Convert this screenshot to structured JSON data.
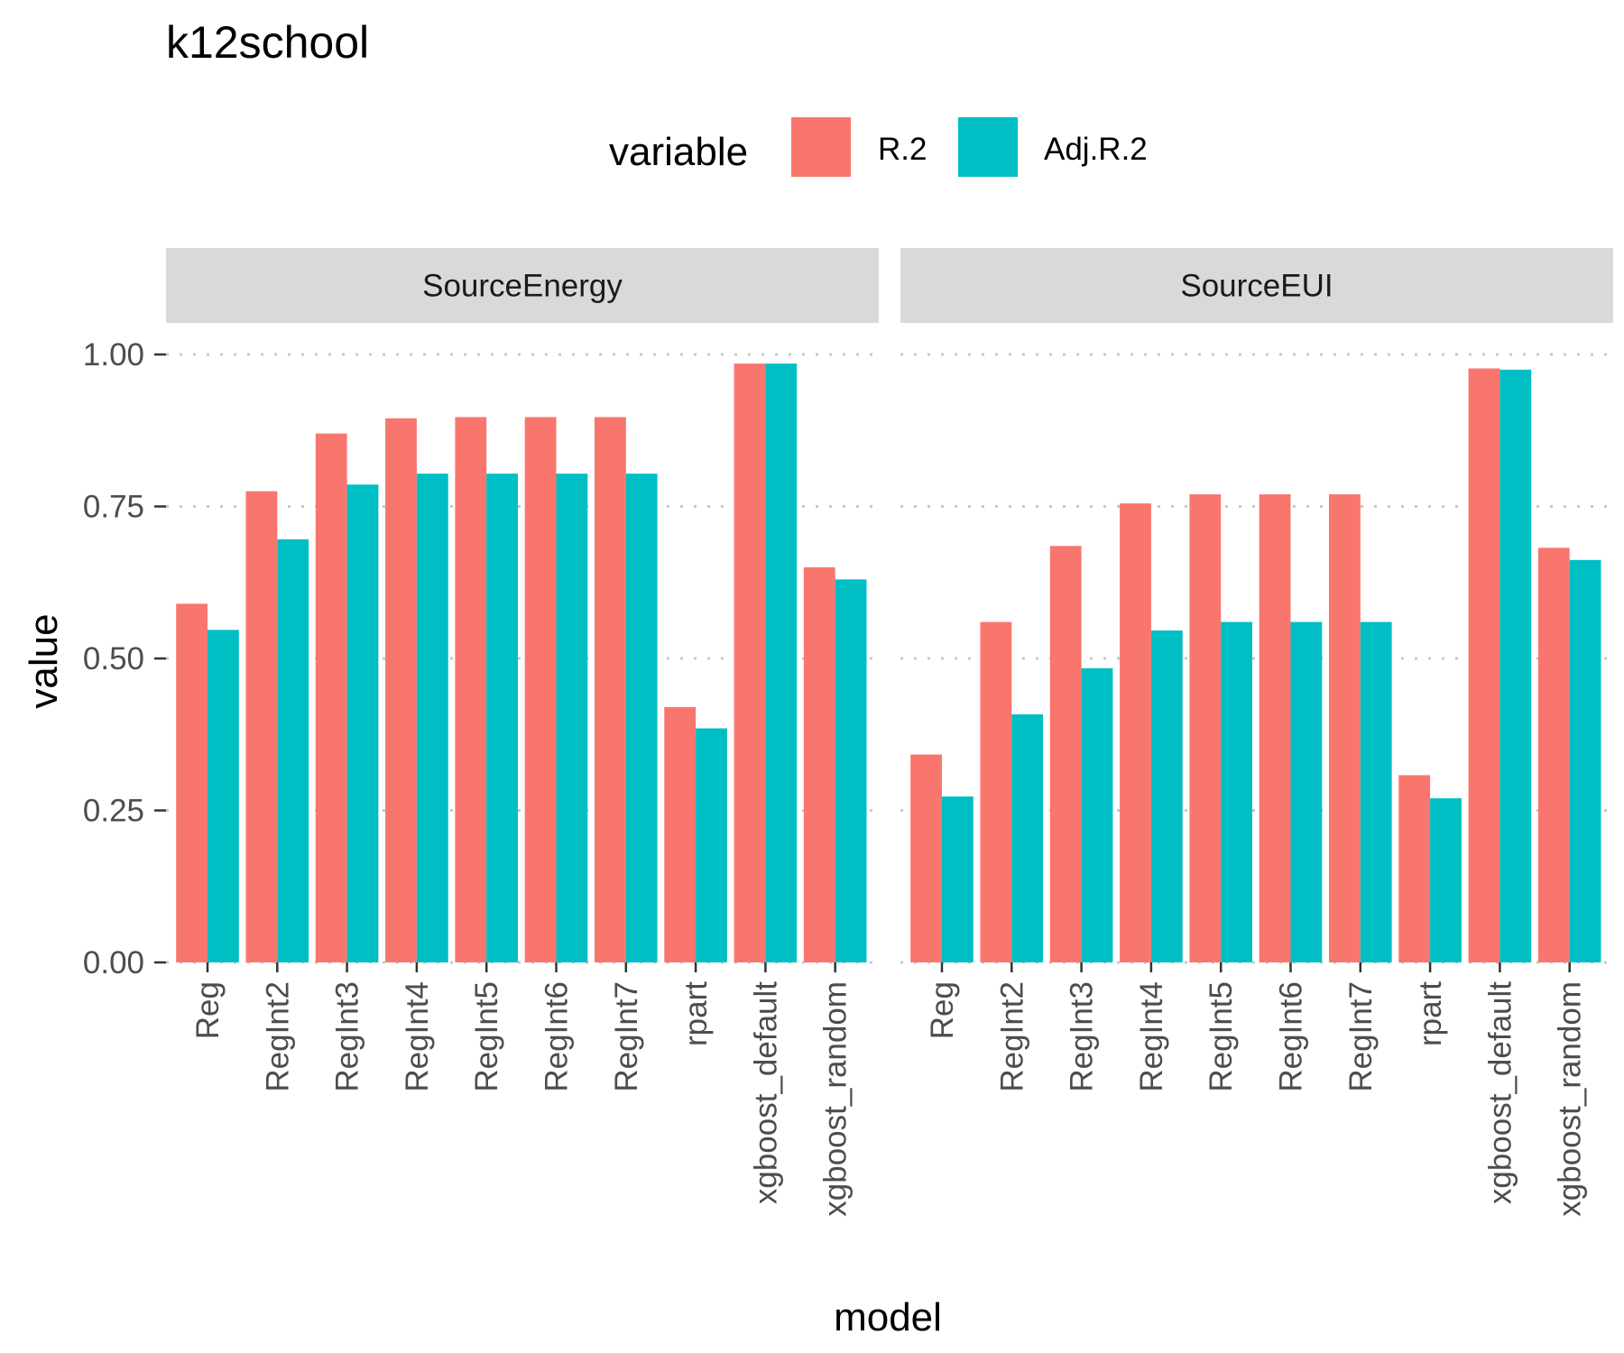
{
  "chart_data": {
    "type": "bar",
    "title": "k12school",
    "xlabel": "model",
    "ylabel": "value",
    "ylim": [
      0,
      1
    ],
    "y_ticks": [
      "0.00",
      "0.25",
      "0.50",
      "0.75",
      "1.00"
    ],
    "grid": true,
    "legend": {
      "title": "variable",
      "position": "top",
      "entries": [
        {
          "name": "R.2",
          "color": "#F8766D"
        },
        {
          "name": "Adj.R.2",
          "color": "#00BFC4"
        }
      ]
    },
    "categories": [
      "Reg",
      "RegInt2",
      "RegInt3",
      "RegInt4",
      "RegInt5",
      "RegInt6",
      "RegInt7",
      "rpart",
      "xgboost_default",
      "xgboost_random"
    ],
    "panels": [
      {
        "strip_label": "SourceEnergy",
        "series": [
          {
            "name": "R.2",
            "values": [
              0.59,
              0.775,
              0.87,
              0.895,
              0.897,
              0.897,
              0.897,
              0.42,
              0.985,
              0.65
            ]
          },
          {
            "name": "Adj.R.2",
            "values": [
              0.547,
              0.696,
              0.786,
              0.804,
              0.804,
              0.804,
              0.804,
              0.385,
              0.985,
              0.63
            ]
          }
        ]
      },
      {
        "strip_label": "SourceEUI",
        "series": [
          {
            "name": "R.2",
            "values": [
              0.342,
              0.56,
              0.685,
              0.755,
              0.77,
              0.77,
              0.77,
              0.308,
              0.977,
              0.682
            ]
          },
          {
            "name": "Adj.R.2",
            "values": [
              0.273,
              0.408,
              0.484,
              0.546,
              0.56,
              0.56,
              0.56,
              0.27,
              0.975,
              0.662
            ]
          }
        ]
      }
    ]
  }
}
